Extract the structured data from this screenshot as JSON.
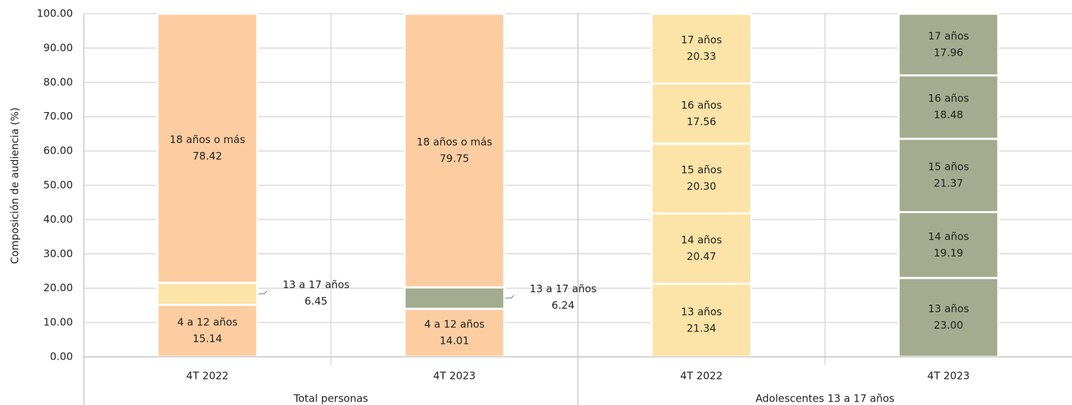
{
  "chart_data": {
    "type": "stacked-bar",
    "y_label": "Composición de audiencia (%)",
    "ylim": [
      0,
      100
    ],
    "yticks": [
      {
        "value": 0,
        "label": "0.00"
      },
      {
        "value": 10,
        "label": "10.00"
      },
      {
        "value": 20,
        "label": "20.00"
      },
      {
        "value": 30,
        "label": "30.00"
      },
      {
        "value": 40,
        "label": "40.00"
      },
      {
        "value": 50,
        "label": "50.00"
      },
      {
        "value": 60,
        "label": "60.00"
      },
      {
        "value": 70,
        "label": "70.00"
      },
      {
        "value": 80,
        "label": "80.00"
      },
      {
        "value": 90,
        "label": "90.00"
      },
      {
        "value": 100,
        "label": "100.00"
      }
    ],
    "grid": true,
    "groups": [
      {
        "name": "Total personas",
        "bars": [
          {
            "category": "4T 2022",
            "names": [
              "4 a 12 años",
              "13 a 17 años",
              "18 años o más"
            ],
            "values": [
              15.14,
              6.45,
              78.42
            ],
            "value_labels": [
              "15.14",
              "6.45",
              "78.42"
            ],
            "colors": [
              "#fdcda1",
              "#fce3a7",
              "#fdcda1"
            ]
          },
          {
            "category": "4T 2023",
            "names": [
              "4 a 12 años",
              "13 a 17 años",
              "18 años o más"
            ],
            "values": [
              14.01,
              6.24,
              79.75
            ],
            "value_labels": [
              "14.01",
              "6.24",
              "79.75"
            ],
            "colors": [
              "#fdcda1",
              "#a3ac8e",
              "#fdcda1"
            ]
          }
        ]
      },
      {
        "name": "Adolescentes 13 a 17 años",
        "bars": [
          {
            "category": "4T 2022",
            "names": [
              "13 años",
              "14 años",
              "15 años",
              "16 años",
              "17 años"
            ],
            "values": [
              21.34,
              20.47,
              20.3,
              17.56,
              20.33
            ],
            "value_labels": [
              "21.34",
              "20.47",
              "20.30",
              "17.56",
              "20.33"
            ],
            "colors": [
              "#fce3a7",
              "#fce3a7",
              "#fce3a7",
              "#fce3a7",
              "#fce3a7"
            ]
          },
          {
            "category": "4T 2023",
            "names": [
              "13 años",
              "14 años",
              "15 años",
              "16 años",
              "17 años"
            ],
            "values": [
              23.0,
              19.19,
              21.37,
              18.48,
              17.96
            ],
            "value_labels": [
              "23.00",
              "19.19",
              "21.37",
              "18.48",
              "17.96"
            ],
            "colors": [
              "#a3ac8e",
              "#a3ac8e",
              "#a3ac8e",
              "#a3ac8e",
              "#a3ac8e"
            ]
          }
        ]
      }
    ]
  }
}
